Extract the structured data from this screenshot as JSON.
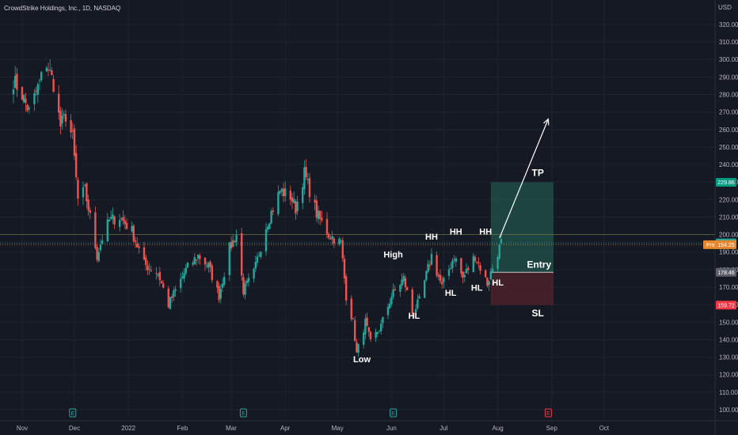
{
  "header": {
    "symbol": "CrowdStrike Holdings, Inc., 1D, NASDAQ",
    "currency": "USD"
  },
  "colors": {
    "background": "#151924",
    "up": "#26a69a",
    "down": "#ef5350",
    "tp_zone": "#1f4c47",
    "sl_zone": "#4a222b",
    "tp_badge": "#089981",
    "sl_badge": "#f23645",
    "pre_badge": "#e8862b",
    "last_badge": "#26a69a",
    "entry_badge": "#5d606b"
  },
  "chart_data": {
    "type": "candlestick",
    "title": "CrowdStrike Holdings, Inc., 1D, NASDAQ",
    "ylim": [
      95,
      330
    ],
    "y_ticks": [
      "100.00",
      "110.00",
      "120.00",
      "130.00",
      "140.00",
      "150.00",
      "160.00",
      "170.00",
      "180.00",
      "190.00",
      "200.00",
      "210.00",
      "220.00",
      "230.00",
      "240.00",
      "250.00",
      "260.00",
      "270.00",
      "280.00",
      "290.00",
      "300.00",
      "310.00",
      "320.00"
    ],
    "x_ticks": [
      "Nov",
      "Dec",
      "2022",
      "Feb",
      "Mar",
      "Apr",
      "May",
      "Jun",
      "Jul",
      "Aug",
      "Sep",
      "Oct"
    ],
    "series_anchors": [
      {
        "date": "2021-10-27",
        "close": 288
      },
      {
        "date": "2021-11-01",
        "close": 280
      },
      {
        "date": "2021-11-05",
        "close": 270
      },
      {
        "date": "2021-11-10",
        "close": 284
      },
      {
        "date": "2021-11-15",
        "close": 298
      },
      {
        "date": "2021-11-19",
        "close": 286
      },
      {
        "date": "2021-11-23",
        "close": 262
      },
      {
        "date": "2021-11-26",
        "close": 268
      },
      {
        "date": "2021-11-30",
        "close": 255
      },
      {
        "date": "2021-12-03",
        "close": 220
      },
      {
        "date": "2021-12-07",
        "close": 225
      },
      {
        "date": "2021-12-10",
        "close": 210
      },
      {
        "date": "2021-12-14",
        "close": 188
      },
      {
        "date": "2021-12-17",
        "close": 198
      },
      {
        "date": "2021-12-21",
        "close": 208
      },
      {
        "date": "2021-12-27",
        "close": 210
      },
      {
        "date": "2022-01-03",
        "close": 202
      },
      {
        "date": "2022-01-10",
        "close": 183
      },
      {
        "date": "2022-01-18",
        "close": 178
      },
      {
        "date": "2022-01-24",
        "close": 160
      },
      {
        "date": "2022-01-28",
        "close": 168
      },
      {
        "date": "2022-02-03",
        "close": 180
      },
      {
        "date": "2022-02-10",
        "close": 188
      },
      {
        "date": "2022-02-16",
        "close": 182
      },
      {
        "date": "2022-02-22",
        "close": 165
      },
      {
        "date": "2022-02-28",
        "close": 192
      },
      {
        "date": "2022-03-04",
        "close": 200
      },
      {
        "date": "2022-03-08",
        "close": 168
      },
      {
        "date": "2022-03-14",
        "close": 178
      },
      {
        "date": "2022-03-21",
        "close": 205
      },
      {
        "date": "2022-03-29",
        "close": 225
      },
      {
        "date": "2022-04-04",
        "close": 222
      },
      {
        "date": "2022-04-07",
        "close": 215
      },
      {
        "date": "2022-04-12",
        "close": 235
      },
      {
        "date": "2022-04-19",
        "close": 212
      },
      {
        "date": "2022-04-26",
        "close": 200
      },
      {
        "date": "2022-05-03",
        "close": 195
      },
      {
        "date": "2022-05-06",
        "close": 165
      },
      {
        "date": "2022-05-10",
        "close": 150
      },
      {
        "date": "2022-05-12",
        "close": 132
      },
      {
        "date": "2022-05-17",
        "close": 150
      },
      {
        "date": "2022-05-20",
        "close": 138
      },
      {
        "date": "2022-05-26",
        "close": 148
      },
      {
        "date": "2022-06-01",
        "close": 165
      },
      {
        "date": "2022-06-08",
        "close": 175
      },
      {
        "date": "2022-06-13",
        "close": 155
      },
      {
        "date": "2022-06-17",
        "close": 162
      },
      {
        "date": "2022-06-24",
        "close": 188
      },
      {
        "date": "2022-06-30",
        "close": 170
      },
      {
        "date": "2022-07-07",
        "close": 188
      },
      {
        "date": "2022-07-12",
        "close": 175
      },
      {
        "date": "2022-07-19",
        "close": 188
      },
      {
        "date": "2022-07-26",
        "close": 172
      },
      {
        "date": "2022-08-01",
        "close": 190
      },
      {
        "date": "2022-08-03",
        "close": 195.22
      }
    ],
    "levels": {
      "take_profit": 229.86,
      "entry": 178.46,
      "stop_loss": 159.72,
      "last_price": 195.22,
      "pre_market": 194.25,
      "horizontal_line": 200
    },
    "position": {
      "start_date": "2022-07-28",
      "end_date": "2022-09-02"
    }
  },
  "badges": {
    "tp": "229.86",
    "last": "195.22",
    "pre_label": "Pre",
    "pre": "194.25",
    "entry": "178.46",
    "sl": "159.72"
  },
  "annotations": [
    {
      "text": "High",
      "date": "2022-06-02",
      "price": 187
    },
    {
      "text": "HH",
      "date": "2022-06-24",
      "price": 197
    },
    {
      "text": "HH",
      "date": "2022-07-08",
      "price": 200
    },
    {
      "text": "HH",
      "date": "2022-07-25",
      "price": 200
    },
    {
      "text": "HL",
      "date": "2022-06-14",
      "price": 152
    },
    {
      "text": "HL",
      "date": "2022-07-05",
      "price": 165
    },
    {
      "text": "HL",
      "date": "2022-07-20",
      "price": 168
    },
    {
      "text": "HL",
      "date": "2022-08-01",
      "price": 171
    },
    {
      "text": "Low",
      "date": "2022-05-15",
      "price": 127
    }
  ],
  "zone_labels": {
    "tp": "TP",
    "entry": "Entry",
    "sl": "SL"
  },
  "arrow": {
    "from": {
      "date": "2022-08-02",
      "price": 198
    },
    "to": {
      "date": "2022-08-30",
      "price": 266
    }
  },
  "events": [
    {
      "date": "2021-11-30",
      "type": "earnings",
      "glyph": "E"
    },
    {
      "date": "2022-03-08",
      "type": "earnings",
      "glyph": "E"
    },
    {
      "date": "2022-06-02",
      "type": "earnings",
      "glyph": "E"
    },
    {
      "date": "2022-08-30",
      "type": "earnings-upcoming",
      "glyph": "E"
    }
  ]
}
